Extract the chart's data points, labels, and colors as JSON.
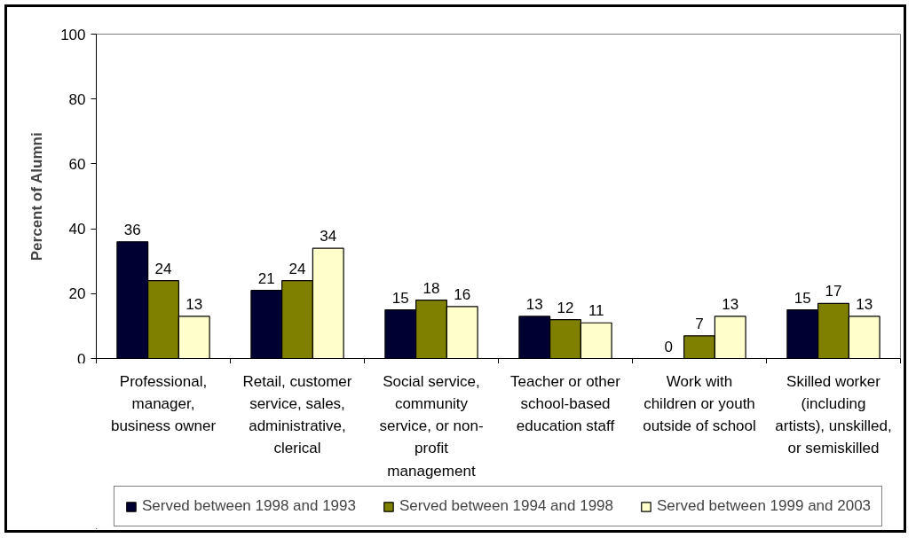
{
  "chart_data": {
    "type": "bar",
    "ylabel": "Percent of Alumni",
    "categories": [
      "Professional, manager, business owner",
      "Retail, customer service, sales, administrative, clerical",
      "Social service, community service, or non-profit management",
      "Teacher or other school-based education staff",
      "Work with children or youth outside of school",
      "Skilled worker (including artists), unskilled, or semiskilled"
    ],
    "series": [
      {
        "name": "Served between 1998 and 1993",
        "color": "#000033",
        "values": [
          36,
          21,
          15,
          13,
          0,
          15
        ]
      },
      {
        "name": "Served between 1994 and 1998",
        "color": "#808000",
        "values": [
          24,
          24,
          18,
          12,
          7,
          17
        ]
      },
      {
        "name": "Served between 1999 and 2003",
        "color": "#ffffcc",
        "values": [
          13,
          34,
          16,
          11,
          13,
          13
        ]
      }
    ],
    "ylim": [
      0,
      100
    ],
    "yticks": [
      0,
      20,
      40,
      60,
      80,
      100
    ],
    "grid": false,
    "legend": "bottom",
    "data_labels": true
  }
}
